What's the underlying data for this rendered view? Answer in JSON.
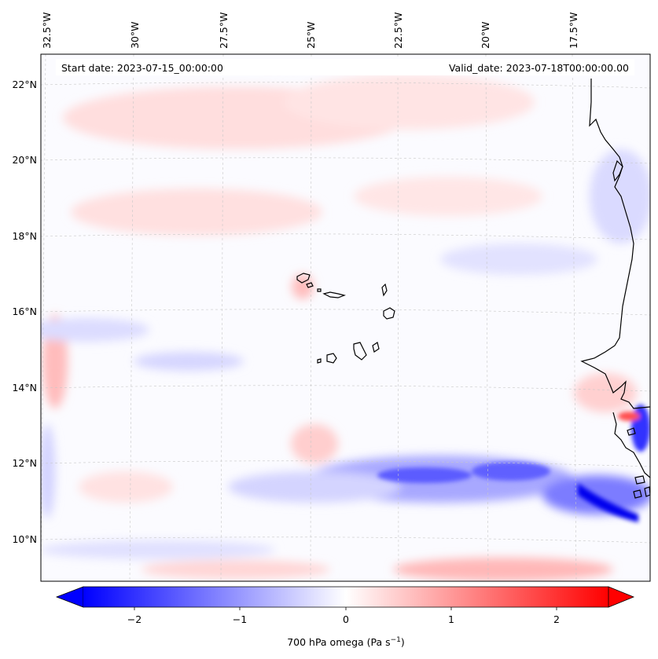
{
  "header": {
    "start_date": "Start date: 2023-07-15_00:00:00",
    "valid_date": "Valid_date: 2023-07-18T00:00:00.00"
  },
  "map": {
    "projection": "lambert-conformal",
    "lon_labels": [
      "32.5°W",
      "30°W",
      "27.5°W",
      "25°W",
      "22.5°W",
      "20°W",
      "17.5°W"
    ],
    "lat_labels": [
      "22°N",
      "20°N",
      "18°N",
      "16°N",
      "14°N",
      "12°N",
      "10°N"
    ],
    "gridlines": true,
    "coastline_color": "#000000"
  },
  "colorbar": {
    "label": "700 hPa omega (Pa s",
    "label_exponent": "−1",
    "label_close": ")",
    "ticks": [
      "−2",
      "−1",
      "0",
      "1",
      "2"
    ],
    "range": [
      -2.75,
      2.75
    ],
    "extend": "both",
    "cmap": "bwr",
    "low_color": "#0000ff",
    "mid_color": "#ffffff",
    "high_color": "#ff0000"
  },
  "colors": {
    "negative": "#0000ff",
    "positive": "#ff0000",
    "gridline": "#bbbbbb"
  }
}
